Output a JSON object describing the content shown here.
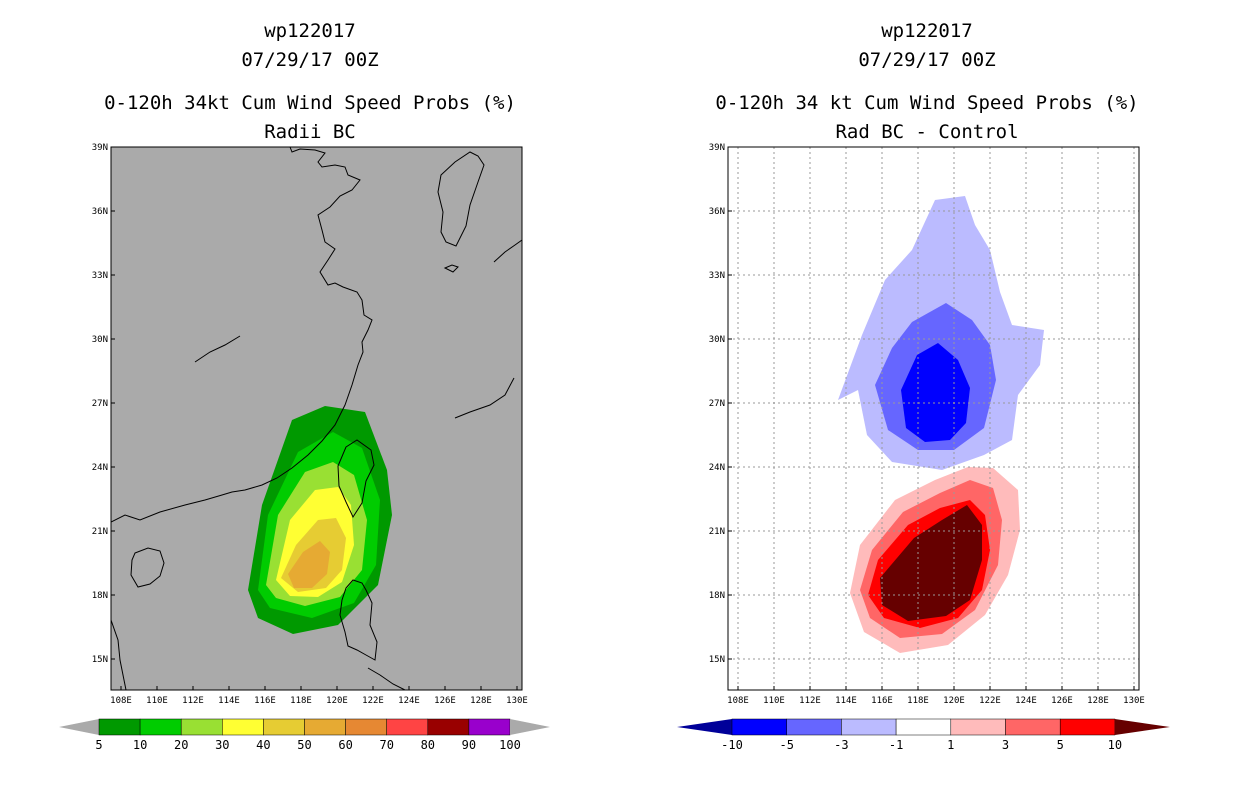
{
  "chart_data": [
    {
      "type": "contour-map",
      "title_lines": [
        "wp122017",
        "07/29/17 00Z",
        "0-120h 34kt Cum Wind Speed Probs (%)",
        "Radii BC"
      ],
      "map_background": "#aaaaaa",
      "grid": false,
      "x_ticks": [
        "108E",
        "110E",
        "112E",
        "114E",
        "116E",
        "118E",
        "120E",
        "122E",
        "124E",
        "126E",
        "128E",
        "130E"
      ],
      "y_ticks": [
        "39N",
        "36N",
        "33N",
        "30N",
        "27N",
        "24N",
        "21N",
        "18N",
        "15N"
      ],
      "lon_range": [
        107.5,
        130.5
      ],
      "lat_range": [
        13.5,
        39.0
      ],
      "colorbar": {
        "labels": [
          "5",
          "10",
          "20",
          "30",
          "40",
          "50",
          "60",
          "70",
          "80",
          "90",
          "100"
        ],
        "colors": [
          "#009900",
          "#00cc00",
          "#99e033",
          "#ffff33",
          "#e6cc33",
          "#e6aa33",
          "#e68833",
          "#ff4444",
          "#990000",
          "#9900cc"
        ],
        "end_color": "#aaaaaa"
      },
      "field": {
        "center_lon": 118.7,
        "center_lat": 19.5,
        "levels": [
          5,
          10,
          20,
          30,
          40,
          50
        ],
        "level_colors": [
          "#009900",
          "#00cc00",
          "#99e033",
          "#ffff33",
          "#e6cc33",
          "#e6aa33"
        ]
      }
    },
    {
      "type": "contour-map",
      "title_lines": [
        "wp122017",
        "07/29/17 00Z",
        "0-120h 34 kt Cum Wind Speed Probs (%)",
        "Rad BC - Control"
      ],
      "map_background": "#ffffff",
      "grid": true,
      "x_ticks": [
        "108E",
        "110E",
        "112E",
        "114E",
        "116E",
        "118E",
        "120E",
        "122E",
        "124E",
        "126E",
        "128E",
        "130E"
      ],
      "y_ticks": [
        "39N",
        "36N",
        "33N",
        "30N",
        "27N",
        "24N",
        "21N",
        "18N",
        "15N"
      ],
      "lon_range": [
        107.5,
        130.5
      ],
      "lat_range": [
        13.5,
        39.0
      ],
      "colorbar": {
        "labels": [
          "-10",
          "-5",
          "-3",
          "-1",
          "1",
          "3",
          "5",
          "10"
        ],
        "colors": [
          "#0000ff",
          "#6666ff",
          "#bbbbff",
          "#ffffff",
          "#ffbbbb",
          "#ff6666",
          "#ff0000"
        ],
        "start_color": "#000099",
        "end_color": "#660000"
      },
      "field": {
        "negative_center": [
          118.9,
          27.0
        ],
        "positive_center": [
          119.4,
          19.0
        ],
        "negative_colors": [
          "#bbbbff",
          "#6666ff",
          "#0000ff"
        ],
        "positive_colors": [
          "#ffbbbb",
          "#ff6666",
          "#ff0000",
          "#660000"
        ]
      }
    }
  ]
}
